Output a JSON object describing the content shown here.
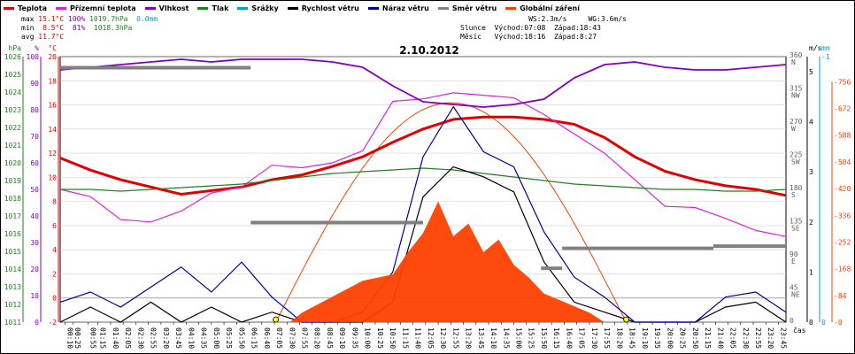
{
  "legend": [
    {
      "label": "Teplota",
      "color": "#e00000"
    },
    {
      "label": "Přízemní teplota",
      "color": "#e020e0"
    },
    {
      "label": "Vlhkost",
      "color": "#8000c0"
    },
    {
      "label": "Tlak",
      "color": "#208020"
    },
    {
      "label": "Srážky",
      "color": "#00a0d0"
    },
    {
      "label": "Rychlost větru",
      "color": "#000000"
    },
    {
      "label": "Náraz větru",
      "color": "#0000a0"
    },
    {
      "label": "Směr větru",
      "color": "#808080"
    },
    {
      "label": "Globální záření",
      "color": "#ff4000"
    }
  ],
  "stats": {
    "max": {
      "label": "max",
      "temp": "15.1°C",
      "hum": "100%",
      "press": "1019.7hPa",
      "rain": "0.0mm"
    },
    "min": {
      "label": "min",
      "temp": "8.5°C",
      "hum": "81%",
      "press": "1018.3hPa"
    },
    "avg": {
      "label": "avg",
      "temp": "11.7°C"
    }
  },
  "astro": {
    "line1": "                WS:2.3m/s     WG:3.6m/s",
    "line2": "Slunce  Východ:07:08  Západ:18:43",
    "line3": "Měsíc   Východ:18:16  Západ:8:27"
  },
  "date_title": "2.10.2012",
  "chart_data": {
    "type": "line",
    "title": "2.10.2012",
    "x_label": "čas",
    "x_ticks": [
      "00:10",
      "00:25",
      "00:55",
      "01:15",
      "01:40",
      "02:05",
      "02:30",
      "02:55",
      "03:20",
      "03:45",
      "04:10",
      "04:35",
      "05:00",
      "05:25",
      "05:50",
      "06:15",
      "06:40",
      "07:05",
      "07:30",
      "07:55",
      "08:20",
      "08:45",
      "09:10",
      "09:35",
      "10:00",
      "10:25",
      "10:50",
      "11:15",
      "11:40",
      "12:05",
      "12:30",
      "12:55",
      "13:20",
      "13:45",
      "14:10",
      "14:35",
      "15:00",
      "15:25",
      "15:50",
      "16:15",
      "16:40",
      "17:05",
      "17:30",
      "17:55",
      "18:20",
      "18:45",
      "19:10",
      "19:35",
      "20:00",
      "20:25",
      "20:50",
      "21:15",
      "21:40",
      "22:05",
      "22:30",
      "22:55",
      "23:20",
      "23:45"
    ],
    "left_axes": {
      "hPa": {
        "label": "hPa",
        "color": "#208020",
        "ticks": [
          1011,
          1012,
          1013,
          1014,
          1015,
          1016,
          1017,
          1018,
          1019,
          1020,
          1021,
          1022,
          1023,
          1024,
          1025,
          1026
        ]
      },
      "pct": {
        "label": "%",
        "color": "#8000c0",
        "ticks": [
          0,
          10,
          20,
          30,
          40,
          50,
          60,
          70,
          80,
          90,
          100
        ]
      },
      "celsius": {
        "label": "°C",
        "color": "#e00000",
        "ticks": [
          -2,
          0,
          2,
          4,
          6,
          8,
          10,
          12,
          14,
          16,
          18,
          20
        ]
      }
    },
    "right_axes": {
      "direction": {
        "ticks": [
          "0",
          "45 NE",
          "90 E",
          "135 SE",
          "180 S",
          "225 SW",
          "270 W",
          "315 NW",
          "360 N"
        ]
      },
      "wind": {
        "label": "m/s",
        "ticks": [
          0,
          1,
          2,
          3,
          4,
          5
        ]
      },
      "rain": {
        "label": "mm",
        "ticks": [
          0,
          1
        ]
      },
      "radiation": {
        "ticks": [
          0,
          84,
          168,
          252,
          336,
          420,
          504,
          588,
          672,
          756
        ]
      }
    },
    "series": [
      {
        "name": "Teplota",
        "color": "#e00000",
        "unit": "°C",
        "x": [
          0,
          1,
          2,
          3,
          4,
          5,
          6,
          7,
          8,
          9,
          10,
          11,
          12,
          13,
          14,
          15,
          16,
          17,
          18,
          19,
          20,
          21,
          22,
          23,
          24
        ],
        "values": [
          11.6,
          10.6,
          9.8,
          9.2,
          8.6,
          8.9,
          9.2,
          9.8,
          10.2,
          10.9,
          11.7,
          12.9,
          14.0,
          14.8,
          15.0,
          15.0,
          14.8,
          14.4,
          13.3,
          11.7,
          10.5,
          9.8,
          9.3,
          9.0,
          8.5
        ]
      },
      {
        "name": "Přízemní teplota",
        "color": "#e020e0",
        "unit": "°C",
        "x": [
          0,
          1,
          2,
          3,
          4,
          5,
          6,
          7,
          8,
          9,
          10,
          11,
          12,
          13,
          14,
          15,
          16,
          17,
          18,
          19,
          20,
          21,
          22,
          23,
          24
        ],
        "values": [
          9.0,
          8.4,
          6.5,
          6.3,
          7.2,
          8.7,
          9.2,
          11.0,
          10.8,
          11.2,
          12.2,
          16.3,
          16.5,
          17.0,
          16.8,
          16.6,
          15.2,
          13.6,
          12.0,
          9.8,
          7.6,
          7.5,
          6.6,
          5.6,
          5.1
        ]
      },
      {
        "name": "Vlhkost",
        "color": "#8000c0",
        "unit": "%",
        "x": [
          0,
          1,
          2,
          3,
          4,
          5,
          6,
          7,
          8,
          9,
          10,
          11,
          12,
          13,
          14,
          15,
          16,
          17,
          18,
          19,
          20,
          21,
          22,
          23,
          24
        ],
        "values": [
          95,
          96,
          97,
          98,
          99,
          98,
          99,
          99,
          99,
          98,
          96,
          89,
          83,
          82,
          81,
          82,
          84,
          92,
          97,
          98,
          96,
          95,
          95,
          96,
          97
        ]
      },
      {
        "name": "Tlak",
        "color": "#208020",
        "unit": "hPa",
        "x": [
          0,
          1,
          2,
          3,
          4,
          5,
          6,
          7,
          8,
          9,
          10,
          11,
          12,
          13,
          14,
          15,
          16,
          17,
          18,
          19,
          20,
          21,
          22,
          23,
          24
        ],
        "values": [
          1018.5,
          1018.5,
          1018.4,
          1018.5,
          1018.6,
          1018.7,
          1018.8,
          1019.0,
          1019.2,
          1019.4,
          1019.5,
          1019.6,
          1019.7,
          1019.6,
          1019.4,
          1019.2,
          1019.0,
          1018.8,
          1018.7,
          1018.6,
          1018.5,
          1018.5,
          1018.4,
          1018.4,
          1018.5
        ]
      },
      {
        "name": "Rychlost větru",
        "color": "#000000",
        "unit": "m/s",
        "x": [
          0,
          1,
          2,
          3,
          4,
          5,
          6,
          7,
          8,
          9,
          10,
          11,
          12,
          13,
          14,
          15,
          16,
          17,
          18,
          19,
          20,
          21,
          22,
          23,
          24
        ],
        "values": [
          0,
          0.3,
          0,
          0.4,
          0,
          0.3,
          0,
          0.2,
          0,
          0,
          0,
          0.4,
          2.5,
          3.1,
          2.9,
          2.6,
          1.2,
          0.4,
          0.2,
          0,
          0,
          0,
          0.3,
          0.4,
          0
        ]
      },
      {
        "name": "Náraz větru",
        "color": "#0000a0",
        "unit": "m/s",
        "x": [
          0,
          1,
          2,
          3,
          4,
          5,
          6,
          7,
          8,
          9,
          10,
          11,
          12,
          13,
          14,
          15,
          16,
          17,
          18,
          19,
          20,
          21,
          22,
          23,
          24
        ],
        "values": [
          0.4,
          0.6,
          0.3,
          0.7,
          1.1,
          0.6,
          1.2,
          0.5,
          0,
          0,
          0.2,
          1.0,
          3.3,
          4.3,
          3.4,
          3.1,
          1.8,
          0.9,
          0.5,
          0,
          0,
          0,
          0.5,
          0.6,
          0.2
        ]
      },
      {
        "name": "Směr větru",
        "color": "#808080",
        "unit": "°",
        "segments": [
          {
            "from": 0,
            "to": 6.3,
            "value": 345
          },
          {
            "from": 6.3,
            "to": 12.0,
            "value": 135
          },
          {
            "from": 15.9,
            "to": 16.6,
            "value": 73
          },
          {
            "from": 16.6,
            "to": 21.6,
            "value": 100
          },
          {
            "from": 21.6,
            "to": 24,
            "value": 103
          }
        ]
      },
      {
        "name": "Globální záření",
        "color": "#ff4000",
        "unit": "W/m2",
        "x": [
          7.6,
          8,
          9,
          10,
          11,
          11.5,
          12,
          12.5,
          13,
          13.5,
          14,
          14.5,
          15,
          15.5,
          16,
          16.5,
          17,
          17.5,
          18
        ],
        "values": [
          0,
          30,
          80,
          130,
          150,
          220,
          280,
          380,
          270,
          310,
          220,
          260,
          180,
          140,
          90,
          70,
          50,
          30,
          0
        ]
      }
    ],
    "sun_curve": {
      "rise": 7.13,
      "set": 18.72,
      "peak": 690
    },
    "grid": true
  }
}
